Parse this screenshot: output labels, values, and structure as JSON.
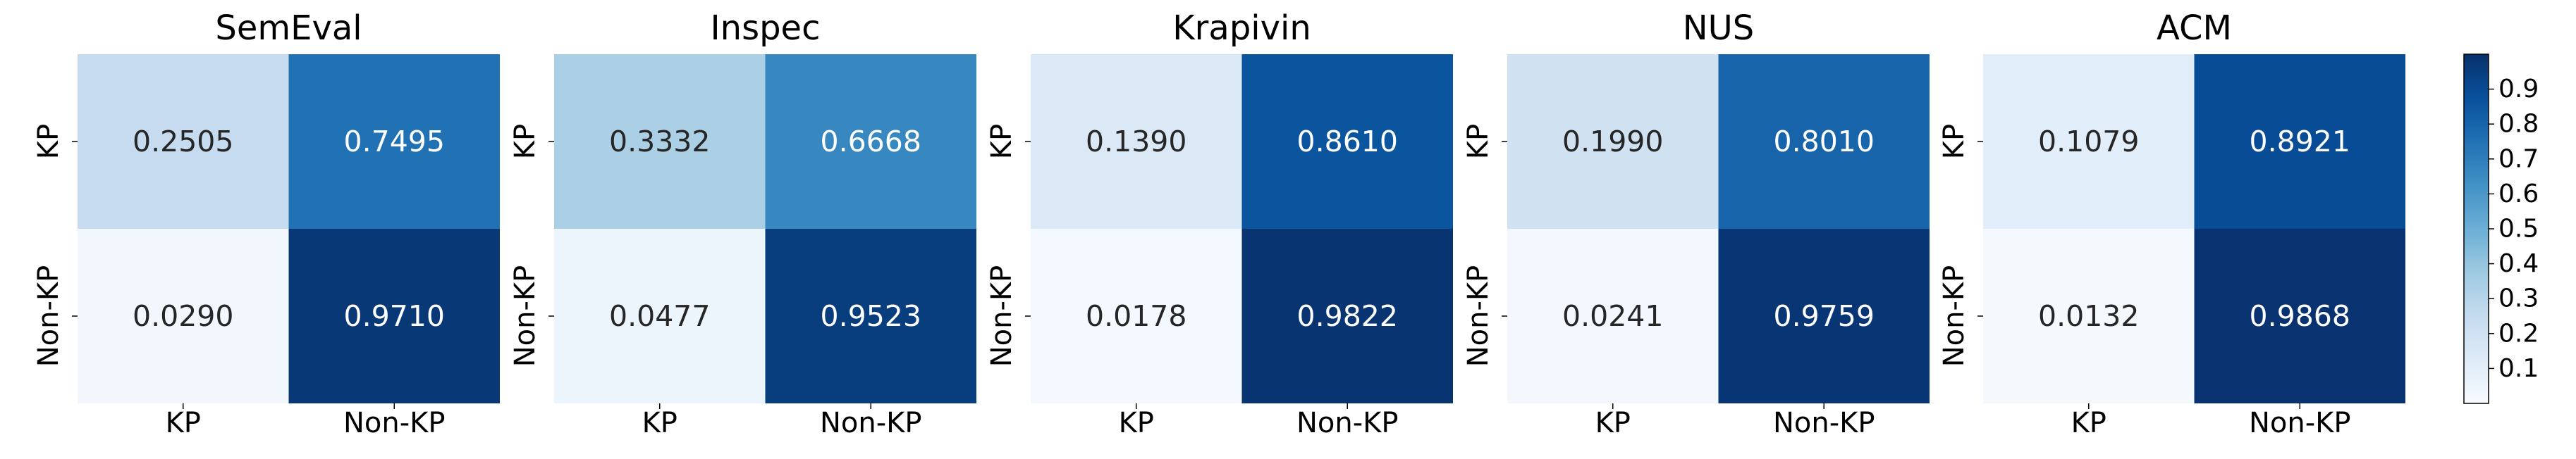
{
  "chart_data": {
    "type": "heatmap",
    "row_labels": [
      "KP",
      "Non-KP"
    ],
    "col_labels": [
      "KP",
      "Non-KP"
    ],
    "value_range": [
      0.0,
      1.0
    ],
    "colormap": "Blues",
    "colorbar": {
      "ticks": [
        0.1,
        0.2,
        0.3,
        0.4,
        0.5,
        0.6,
        0.7,
        0.8,
        0.9
      ],
      "tick_labels": [
        "0.1",
        "0.2",
        "0.3",
        "0.4",
        "0.5",
        "0.6",
        "0.7",
        "0.8",
        "0.9"
      ],
      "placement": "right"
    },
    "panels": [
      {
        "title": "SemEval",
        "values": [
          [
            0.2505,
            0.7495
          ],
          [
            0.029,
            0.971
          ]
        ],
        "labels": [
          [
            "0.2505",
            "0.7495"
          ],
          [
            "0.0290",
            "0.9710"
          ]
        ]
      },
      {
        "title": "Inspec",
        "values": [
          [
            0.3332,
            0.6668
          ],
          [
            0.0477,
            0.9523
          ]
        ],
        "labels": [
          [
            "0.3332",
            "0.6668"
          ],
          [
            "0.0477",
            "0.9523"
          ]
        ]
      },
      {
        "title": "Krapivin",
        "values": [
          [
            0.139,
            0.861
          ],
          [
            0.0178,
            0.9822
          ]
        ],
        "labels": [
          [
            "0.1390",
            "0.8610"
          ],
          [
            "0.0178",
            "0.9822"
          ]
        ]
      },
      {
        "title": "NUS",
        "values": [
          [
            0.199,
            0.801
          ],
          [
            0.0241,
            0.9759
          ]
        ],
        "labels": [
          [
            "0.1990",
            "0.8010"
          ],
          [
            "0.0241",
            "0.9759"
          ]
        ]
      },
      {
        "title": "ACM",
        "values": [
          [
            0.1079,
            0.8921
          ],
          [
            0.0132,
            0.9868
          ]
        ],
        "labels": [
          [
            "0.1079",
            "0.8921"
          ],
          [
            "0.0132",
            "0.9868"
          ]
        ]
      }
    ]
  }
}
